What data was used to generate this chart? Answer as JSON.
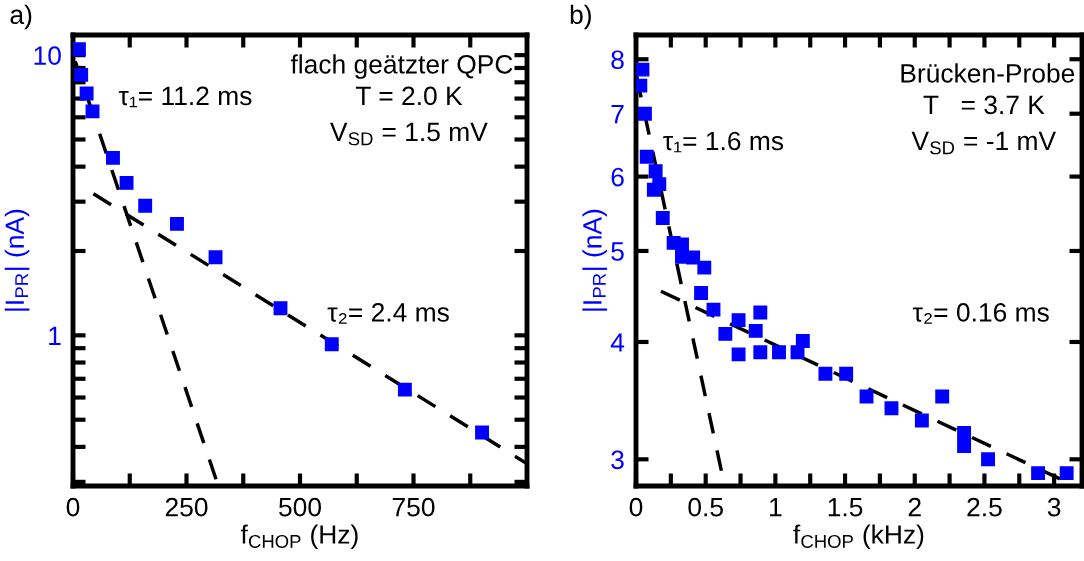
{
  "chart_data": [
    {
      "type": "scatter",
      "xlabel": "f$_{CHOP}$ (Hz)",
      "ylabel": "|I$_{PR}$| (nA)",
      "log": "y",
      "marker": "square",
      "grid": false,
      "legend": false,
      "xlim": [
        0,
        1000
      ],
      "xticks": [
        0,
        {
          "value": 125,
          "label": null
        },
        250,
        {
          "value": 375,
          "label": null
        },
        500,
        {
          "value": 625,
          "label": null
        },
        750,
        {
          "value": 875,
          "label": null
        }
      ],
      "ylim": [
        0.29,
        11.8
      ],
      "yticks": [
        {
          "value": 0.3,
          "label": null
        },
        {
          "value": 0.4,
          "label": null
        },
        {
          "value": 0.5,
          "label": null
        },
        {
          "value": 0.6,
          "label": null
        },
        {
          "value": 0.7,
          "label": null
        },
        {
          "value": 0.8,
          "label": null
        },
        {
          "value": 0.9,
          "label": null
        },
        1,
        {
          "value": 2,
          "label": null
        },
        {
          "value": 3,
          "label": null
        },
        {
          "value": 4,
          "label": null
        },
        {
          "value": 5,
          "label": null
        },
        {
          "value": 6,
          "label": null
        },
        {
          "value": 7,
          "label": null
        },
        {
          "value": 8,
          "label": null
        },
        {
          "value": 9,
          "label": null
        },
        10
      ],
      "annotations": [
        "a)",
        "flach geätzter QPC",
        "T = 2.0 K",
        "V$_{SD}$ = 1.5 mV",
        "τ₁= 11.2 ms",
        "τ₂= 2.4 ms"
      ],
      "series": [
        {
          "color": "#0000ff",
          "x": [
            13,
            18,
            30,
            43,
            88,
            118,
            159,
            229,
            314,
            457,
            570,
            731,
            901
          ],
          "values": [
            10.5,
            8.5,
            7.3,
            6.3,
            4.3,
            3.5,
            2.9,
            2.5,
            1.9,
            1.25,
            0.93,
            0.64,
            0.45
          ]
        },
        {
          "type": "line",
          "color": "#000000",
          "line_style": "dashed",
          "marker": "none",
          "x": [
            5,
            320
          ],
          "values": [
            9.5,
            0.29
          ]
        },
        {
          "type": "line",
          "color": "#000000",
          "line_style": "dashed",
          "marker": "none",
          "x": [
            45,
            998
          ],
          "values": [
            3.2,
            0.35
          ]
        }
      ]
    },
    {
      "type": "scatter",
      "xlabel": "f$_{CHOP}$ (kHz)",
      "ylabel": "|I$_{PR}$| (nA)",
      "log": "y",
      "marker": "square",
      "grid": false,
      "legend": false,
      "xlim": [
        0,
        3.2
      ],
      "xticks": [
        0,
        {
          "value": 0.25,
          "label": null
        },
        0.5,
        {
          "value": 0.75,
          "label": null
        },
        1,
        {
          "value": 1.25,
          "label": null
        },
        1.5,
        {
          "value": 1.75,
          "label": null
        },
        2,
        {
          "value": 2.25,
          "label": null
        },
        2.5,
        {
          "value": 2.75,
          "label": null
        },
        3
      ],
      "ylim": [
        2.81,
        8.49
      ],
      "yticks": [
        3,
        4,
        5,
        6,
        7,
        8
      ],
      "annotations": [
        "b)",
        "Brücken-Probe",
        "T   = 3.7 K",
        "V$_{SD}$ = -1 mV",
        "τ₁= 1.6 ms",
        "τ₂= 0.16 ms"
      ],
      "series": [
        {
          "color": "#0000ff",
          "x": [
            0.046,
            0.031,
            0.064,
            0.077,
            0.141,
            0.167,
            0.128,
            0.192,
            0.27,
            0.33,
            0.33,
            0.41,
            0.49,
            0.467,
            0.556,
            0.641,
            0.736,
            0.736,
            0.859,
            0.892,
            0.892,
            1.026,
            1.159,
            1.197,
            1.359,
            1.508,
            1.654,
            1.833,
            2.051,
            2.197,
            2.354,
            2.354,
            2.526,
            2.885,
            3.09
          ],
          "values": [
            7.8,
            7.5,
            7.0,
            6.3,
            6.08,
            5.89,
            5.81,
            5.42,
            5.1,
            5.08,
            4.93,
            4.92,
            4.8,
            4.51,
            4.33,
            4.08,
            4.22,
            3.88,
            4.11,
            4.3,
            3.9,
            3.9,
            3.9,
            4.01,
            3.7,
            3.7,
            3.5,
            3.4,
            3.3,
            3.5,
            3.2,
            3.1,
            3.0,
            2.9,
            2.9
          ]
        },
        {
          "type": "line",
          "color": "#000000",
          "line_style": "dashed",
          "marker": "none",
          "x": [
            0.005,
            0.636
          ],
          "values": [
            7.66,
            2.81
          ]
        },
        {
          "type": "line",
          "color": "#000000",
          "line_style": "dashed",
          "marker": "none",
          "x": [
            0.179,
            3.15
          ],
          "values": [
            4.53,
            2.81
          ]
        }
      ]
    }
  ]
}
